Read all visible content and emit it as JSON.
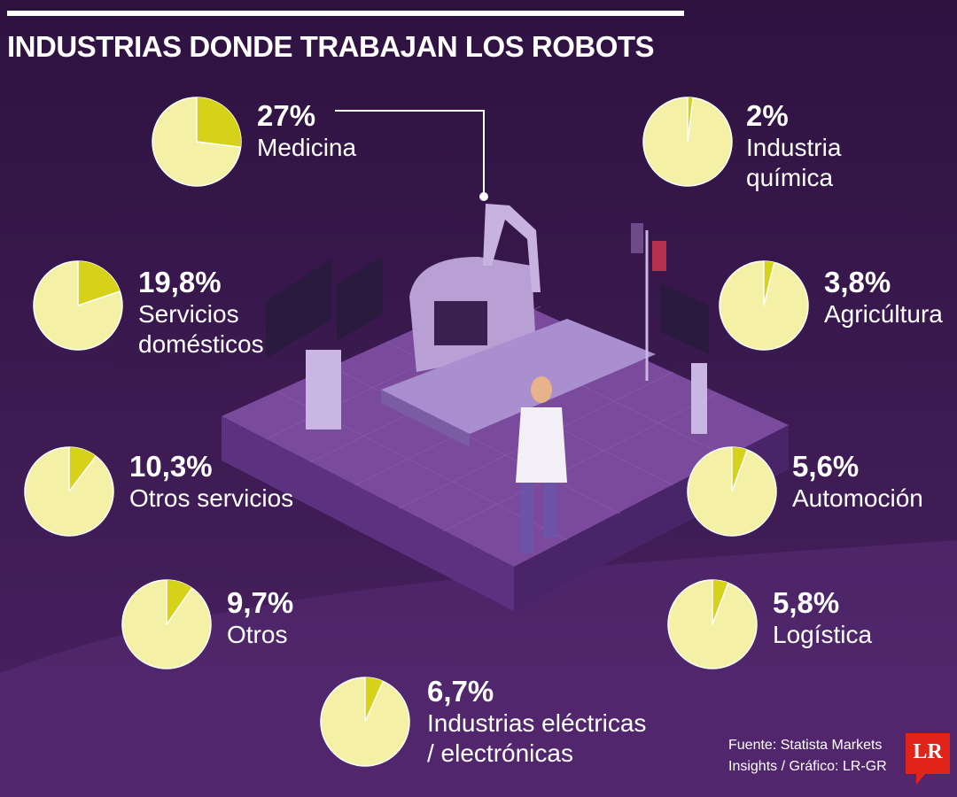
{
  "title": "INDUSTRIAS DONDE TRABAJAN LOS ROBOTS",
  "colors": {
    "background": "#3a1a4c",
    "pie_base": "#f4f0a5",
    "pie_slice": "#d6d21a",
    "text": "#ffffff",
    "logo": "#e2231a"
  },
  "chart_data": {
    "type": "pie",
    "title": "INDUSTRIAS DONDE TRABAJAN LOS ROBOTS",
    "items": [
      {
        "value": 27,
        "value_label": "27%",
        "label": "Medicina"
      },
      {
        "value": 2,
        "value_label": "2%",
        "label": "Industria\nquímica"
      },
      {
        "value": 19.8,
        "value_label": "19,8%",
        "label": "Servicios\ndomésticos"
      },
      {
        "value": 3.8,
        "value_label": "3,8%",
        "label": "Agricúltura"
      },
      {
        "value": 10.3,
        "value_label": "10,3%",
        "label": "Otros servicios"
      },
      {
        "value": 5.6,
        "value_label": "5,6%",
        "label": "Automoción"
      },
      {
        "value": 9.7,
        "value_label": "9,7%",
        "label": "Otros"
      },
      {
        "value": 5.8,
        "value_label": "5,8%",
        "label": "Logística"
      },
      {
        "value": 6.7,
        "value_label": "6,7%",
        "label": "Industrias eléctricas\n/ electrónicas"
      }
    ]
  },
  "source": "Fuente: Statista Markets\nInsights / Gráfico: LR-GR",
  "logo": "LR"
}
